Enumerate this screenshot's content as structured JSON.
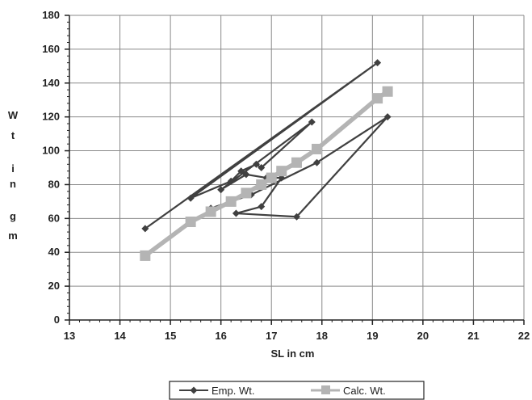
{
  "chart_data": {
    "type": "line",
    "title": "",
    "xlabel": "SL in cm",
    "ylabel": "Wt in gm",
    "ylabel_chars": [
      "W",
      "t",
      "",
      "i",
      "n",
      "",
      "g",
      "m"
    ],
    "xlim": [
      13,
      22
    ],
    "ylim": [
      0,
      180
    ],
    "xticks": [
      13,
      14,
      15,
      16,
      17,
      18,
      19,
      20,
      21,
      22
    ],
    "yticks": [
      0,
      20,
      40,
      60,
      80,
      100,
      120,
      140,
      160,
      180
    ],
    "grid": true,
    "legend": "bottom",
    "series": [
      {
        "name": "Emp. Wt.",
        "color": "#404040",
        "marker": "diamond",
        "points": [
          [
            14.5,
            54
          ],
          [
            19.1,
            152
          ],
          [
            15.4,
            72
          ],
          [
            16.2,
            82
          ],
          [
            16.4,
            88
          ],
          [
            16.7,
            92
          ],
          [
            16.8,
            90
          ],
          [
            17.8,
            117
          ],
          [
            16.0,
            77
          ],
          [
            16.5,
            86
          ],
          [
            16.9,
            84
          ],
          [
            17.2,
            84
          ],
          [
            16.8,
            67
          ],
          [
            16.3,
            63
          ],
          [
            17.5,
            61
          ],
          [
            19.3,
            120
          ],
          [
            17.9,
            93
          ],
          [
            16.6,
            74
          ],
          [
            16.2,
            70
          ],
          [
            15.8,
            66
          ]
        ]
      },
      {
        "name": "Calc. Wt.",
        "color": "#b4b4b4",
        "marker": "square",
        "points": [
          [
            14.5,
            38
          ],
          [
            15.4,
            58
          ],
          [
            15.8,
            64
          ],
          [
            16.2,
            70
          ],
          [
            16.5,
            75
          ],
          [
            16.8,
            80
          ],
          [
            17.0,
            84
          ],
          [
            17.2,
            88
          ],
          [
            17.5,
            93
          ],
          [
            17.9,
            101
          ],
          [
            19.1,
            131
          ],
          [
            19.3,
            135
          ]
        ]
      }
    ]
  }
}
